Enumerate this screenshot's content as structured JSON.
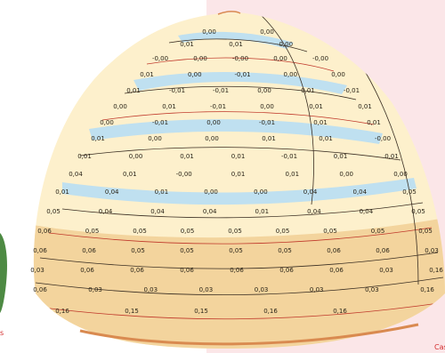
{
  "caption_right": "Cases",
  "caption_left": "s",
  "colors": {
    "background_panel": "#fbe6e8",
    "pale": "#fdf0cc",
    "blue": "#bfe0f0",
    "peach": "#f3d49d",
    "rim": "#d98a50",
    "contour_dark": "#3a2e22",
    "contour_red": "#c0392b",
    "green_side": "#4d8a43"
  },
  "contour_labels": [
    "0,00",
    "0,00",
    "0,01",
    "0,01",
    "-0,00",
    "-0,00",
    "0,00",
    "-0,00",
    "0,00",
    "-0,00",
    "0,01",
    "0,00",
    "-0,01",
    "0,00",
    "0,00",
    "0,01",
    "-0,01",
    "-0,01",
    "0,00",
    "0,01",
    "-0,01",
    "0,00",
    "0,01",
    "-0,01",
    "0,00",
    "0,01",
    "0,01",
    "0,00",
    "-0,01",
    "0,00",
    "-0,01",
    "0,01",
    "0,01",
    "0,01",
    "0,00",
    "0,00",
    "0,01",
    "0,01",
    "-0,00",
    "0,01",
    "0,00",
    "0,01",
    "0,01",
    "-0,01",
    "0,01",
    "0,01",
    "0,04",
    "0,01",
    "-0,00",
    "0,01",
    "0,01",
    "0,00",
    "0,00",
    "0,01",
    "0,04",
    "0,01",
    "0,00",
    "0,00",
    "0,04",
    "0,04",
    "0,05",
    "0,05",
    "0,04",
    "0,04",
    "0,04",
    "0,01",
    "0,04",
    "0,04",
    "0,05",
    "0,06",
    "0,05",
    "0,05",
    "0,05",
    "0,05",
    "0,05",
    "0,05",
    "0,05",
    "0,05",
    "0,06",
    "0,06",
    "0,05",
    "0,05",
    "0,05",
    "0,05",
    "0,06",
    "0,06",
    "0,03",
    "0,03",
    "0,06",
    "0,06",
    "0,06",
    "0,06",
    "0,06",
    "0,06",
    "0,03",
    "0,16",
    "0,06",
    "0,03",
    "0,03",
    "0,03",
    "0,03",
    "0,03",
    "0,03",
    "0,16",
    "0,16",
    "0,15",
    "0,15",
    "0,16",
    "0,16"
  ]
}
